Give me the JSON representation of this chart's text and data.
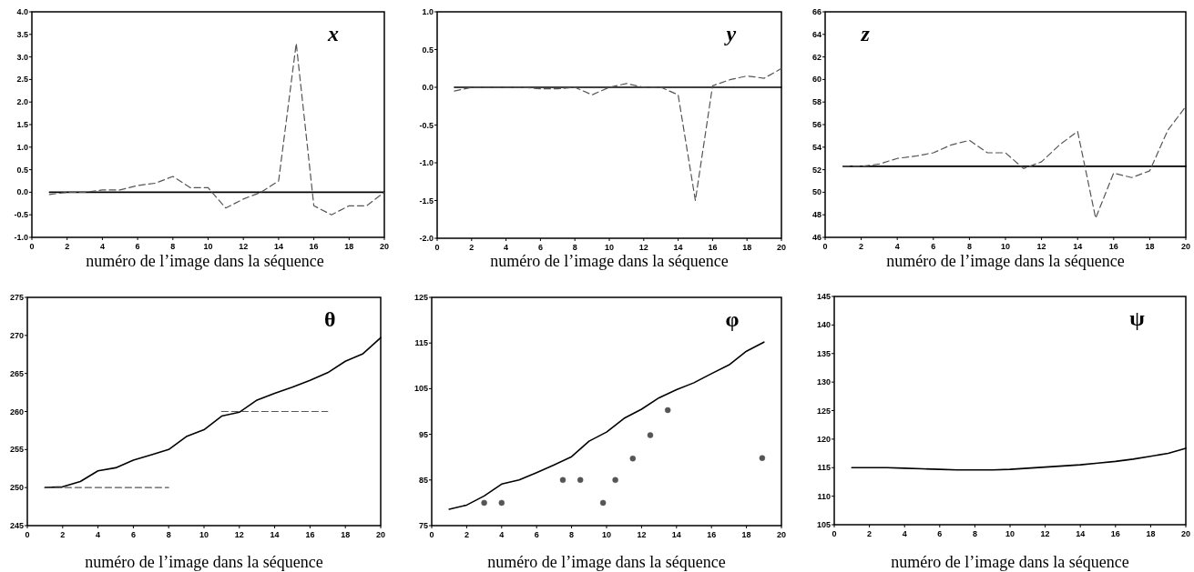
{
  "chart_data": [
    {
      "type": "line",
      "title": "x",
      "xlabel": "numéro de l’image dans la séquence",
      "x": [
        1,
        2,
        3,
        4,
        5,
        6,
        7,
        8,
        9,
        10,
        11,
        12,
        13,
        14,
        15,
        16,
        17,
        18,
        19,
        20
      ],
      "xlim": [
        0,
        20
      ],
      "xticks": [
        0,
        2,
        4,
        6,
        8,
        10,
        12,
        14,
        16,
        18,
        20
      ],
      "ylim": [
        -1.0,
        4.0
      ],
      "yticks": [
        {
          "value": -1,
          "label": "-1.0"
        },
        {
          "value": -0.5,
          "label": "-0.5"
        },
        {
          "value": 0,
          "label": "0.0"
        },
        {
          "value": 0.5,
          "label": "0.5"
        },
        {
          "value": 1,
          "label": "1.0"
        },
        {
          "value": 1.5,
          "label": "1.5"
        },
        {
          "value": 2,
          "label": "2.0"
        },
        {
          "value": 2.5,
          "label": "2.5"
        },
        {
          "value": 3,
          "label": "3.0"
        },
        {
          "value": 3.5,
          "label": "3.5"
        },
        {
          "value": 4,
          "label": "4.0"
        }
      ],
      "marker": "none",
      "series": [
        {
          "color": "#000000",
          "line_style": "solid",
          "values": [
            0,
            0,
            0,
            0,
            0,
            0,
            0,
            0,
            0,
            0,
            0,
            0,
            0,
            0,
            0,
            0,
            0,
            0,
            0,
            0
          ]
        },
        {
          "color": "#555555",
          "line_style": "dashed",
          "values": [
            -0.05,
            0,
            0,
            0.05,
            0.05,
            0.15,
            0.2,
            0.35,
            0.1,
            0.1,
            -0.35,
            -0.15,
            0,
            0.25,
            3.3,
            -0.3,
            -0.5,
            -0.3,
            -0.3,
            0
          ]
        }
      ]
    },
    {
      "type": "line",
      "title": "y",
      "xlabel": "numéro de l’image dans la séquence",
      "x": [
        1,
        2,
        3,
        4,
        5,
        6,
        7,
        8,
        9,
        10,
        11,
        12,
        13,
        14,
        15,
        16,
        17,
        18,
        19,
        20
      ],
      "xlim": [
        0,
        20
      ],
      "xticks": [
        0,
        2,
        4,
        6,
        8,
        10,
        12,
        14,
        16,
        18,
        20
      ],
      "ylim": [
        -2.0,
        1.0
      ],
      "yticks": [
        {
          "value": -2,
          "label": "-2.0"
        },
        {
          "value": -1.5,
          "label": "-1.5"
        },
        {
          "value": -1,
          "label": "-1.0"
        },
        {
          "value": -0.5,
          "label": "-0.5"
        },
        {
          "value": 0,
          "label": "0.0"
        },
        {
          "value": 0.5,
          "label": "0.5"
        },
        {
          "value": 1,
          "label": "1.0"
        }
      ],
      "marker": "none",
      "series": [
        {
          "color": "#000000",
          "line_style": "solid",
          "values": [
            0,
            0,
            0,
            0,
            0,
            0,
            0,
            0,
            0,
            0,
            0,
            0,
            0,
            0,
            0,
            0,
            0,
            0,
            0,
            0
          ]
        },
        {
          "color": "#555555",
          "line_style": "dashed",
          "values": [
            -0.05,
            0,
            0,
            0,
            0,
            -0.02,
            -0.02,
            0,
            -0.1,
            0,
            0.05,
            0,
            0,
            -0.1,
            -1.5,
            0.02,
            0.1,
            0.15,
            0.12,
            0.25
          ]
        }
      ]
    },
    {
      "type": "line",
      "title": "z",
      "xlabel": "numéro de l’image dans la séquence",
      "x": [
        1,
        2,
        3,
        4,
        5,
        6,
        7,
        8,
        9,
        10,
        11,
        12,
        13,
        14,
        15,
        16,
        17,
        18,
        19,
        20
      ],
      "xlim": [
        0,
        20
      ],
      "xticks": [
        0,
        2,
        4,
        6,
        8,
        10,
        12,
        14,
        16,
        18,
        20
      ],
      "ylim": [
        46,
        66
      ],
      "yticks": [
        46,
        48,
        50,
        52,
        54,
        56,
        58,
        60,
        62,
        64,
        66
      ],
      "marker": "none",
      "series": [
        {
          "color": "#000000",
          "line_style": "solid",
          "values": [
            52.3,
            52.3,
            52.3,
            52.3,
            52.3,
            52.3,
            52.3,
            52.3,
            52.3,
            52.3,
            52.3,
            52.3,
            52.3,
            52.3,
            52.3,
            52.3,
            52.3,
            52.3,
            52.3,
            52.3
          ]
        },
        {
          "color": "#555555",
          "line_style": "dashed",
          "values": [
            52.3,
            52.3,
            52.5,
            53,
            53.2,
            53.5,
            54.2,
            54.6,
            53.5,
            53.5,
            52.1,
            52.7,
            54.2,
            55.4,
            47.7,
            51.7,
            51.3,
            51.9,
            55.5,
            57.6
          ]
        }
      ]
    },
    {
      "type": "line",
      "title": "θ",
      "xlabel": "numéro de l’image dans la séquence",
      "x": [
        1,
        2,
        3,
        4,
        5,
        6,
        7,
        8,
        9,
        10,
        11,
        12,
        13,
        14,
        15,
        16,
        17,
        18,
        19,
        20
      ],
      "xlim": [
        0,
        20
      ],
      "xticks": [
        0,
        2,
        4,
        6,
        8,
        10,
        12,
        14,
        16,
        18,
        20
      ],
      "ylim": [
        245,
        275
      ],
      "yticks": [
        245,
        250,
        255,
        260,
        265,
        270,
        275
      ],
      "marker": "none",
      "series": [
        {
          "color": "#000000",
          "line_style": "solid",
          "values": [
            250,
            250.1,
            250.8,
            252.2,
            252.6,
            253.6,
            254.3,
            255,
            256.7,
            257.6,
            259.4,
            259.9,
            261.5,
            262.4,
            263.2,
            264.1,
            265.1,
            266.6,
            267.6,
            269.7
          ]
        },
        {
          "color": "#555555",
          "line_style": "dashed",
          "values": [
            250,
            250,
            250,
            250,
            250,
            250,
            250,
            250,
            null,
            null,
            260,
            260,
            260,
            260,
            260,
            260,
            260,
            null,
            null,
            null
          ]
        }
      ]
    },
    {
      "type": "line",
      "title": "φ",
      "xlabel": "numéro de l’image dans la séquence",
      "x": [
        1,
        2,
        3,
        4,
        5,
        6,
        7,
        8,
        9,
        10,
        11,
        12,
        13,
        14,
        15,
        16,
        17,
        18,
        19
      ],
      "xlim": [
        0,
        20
      ],
      "xticks": [
        0,
        2,
        4,
        6,
        8,
        10,
        12,
        14,
        16,
        18,
        20
      ],
      "ylim": [
        75,
        125
      ],
      "yticks": [
        75,
        85,
        95,
        105,
        115,
        125
      ],
      "series": [
        {
          "color": "#000000",
          "line_style": "solid",
          "values": [
            78.6,
            79.5,
            81.5,
            84.1,
            85,
            86.6,
            88.3,
            90.1,
            93.5,
            95.5,
            98.5,
            100.5,
            103,
            104.8,
            106.3,
            108.3,
            110.2,
            113.2,
            115.2
          ]
        },
        {
          "type": "scatter",
          "marker": "circle",
          "color": "#555555",
          "x": [
            3,
            4,
            7.5,
            8.5,
            9.8,
            10.5,
            11.5,
            12.5,
            13.5,
            18.9
          ],
          "values": [
            80,
            80,
            85,
            85,
            80,
            85,
            89.7,
            94.8,
            100.3,
            89.8
          ]
        }
      ]
    },
    {
      "type": "line",
      "title": "ψ",
      "xlabel": "numéro de l’image dans la séquence",
      "x": [
        1,
        2,
        3,
        4,
        5,
        6,
        7,
        8,
        9,
        10,
        11,
        12,
        13,
        14,
        15,
        16,
        17,
        18,
        19,
        20
      ],
      "xlim": [
        0,
        20
      ],
      "xticks": [
        0,
        2,
        4,
        6,
        8,
        10,
        12,
        14,
        16,
        18,
        20
      ],
      "ylim": [
        105,
        145
      ],
      "yticks": [
        105,
        110,
        115,
        120,
        125,
        130,
        135,
        140,
        145
      ],
      "marker": "none",
      "series": [
        {
          "color": "#000000",
          "line_style": "solid",
          "values": [
            115,
            115,
            115,
            114.9,
            114.8,
            114.7,
            114.6,
            114.6,
            114.6,
            114.7,
            114.9,
            115.1,
            115.3,
            115.5,
            115.8,
            116.1,
            116.5,
            117,
            117.5,
            118.4
          ]
        }
      ]
    }
  ]
}
